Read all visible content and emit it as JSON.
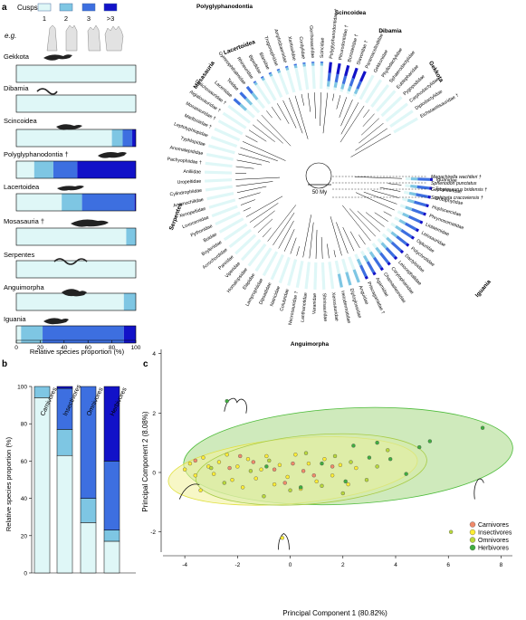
{
  "colors": {
    "cusp1": "#dff7f7",
    "cusp2": "#7ec6e3",
    "cusp3": "#3d6fe0",
    "cusp4": "#1212c8",
    "carnivores": "#f08a6a",
    "insectivores": "#ffee33",
    "omnivores": "#b9d93a",
    "herbivores": "#3fae3f",
    "ellipse_insect": "#f2f2a0",
    "ellipse_omni": "#d9eba6",
    "ellipse_herb": "#bfe3a6"
  },
  "panels": {
    "a": "a",
    "b": "b",
    "c": "c"
  },
  "panel_a": {
    "cusps_label": "Cusps",
    "cusp_categories": [
      "1",
      "2",
      "3",
      ">3"
    ],
    "eg_label": "e.g.",
    "xlabel": "Relative species proportion (%)",
    "xticks": [
      "0",
      "20",
      "40",
      "60",
      "80",
      "100"
    ]
  },
  "panel_b": {
    "ylabel": "Relative species proportion (%)",
    "yticks": [
      "0",
      "20",
      "40",
      "60",
      "80",
      "100"
    ]
  },
  "panel_c": {
    "xlabel": "Principal Component 1 (80.82%)",
    "ylabel": "Principal Component 2 (8.08%)",
    "xticks": [
      "-4",
      "-2",
      "0",
      "2",
      "4",
      "6",
      "8"
    ],
    "yticks": [
      "-2",
      "0",
      "2",
      "4"
    ],
    "legend": [
      "Carnivores",
      "Insectivores",
      "Omnivores",
      "Herbivores"
    ]
  },
  "tree": {
    "scale_label": "50 My",
    "clades": [
      "Polyglyphanodontia",
      "Scincoidea",
      "Dibamia",
      "Gekkota",
      "Iguania",
      "Anguimorpha",
      "Serpentes",
      "Mosasauria",
      "Lacertoidea"
    ],
    "tips": [
      "Iguanidae",
      "Tropiduridae",
      "Crotaphytidae",
      "Hoplocercidae",
      "Phrynosomatidae",
      "Liolaemidae",
      "Leiosauridae",
      "Opluridae",
      "Polychrotidae",
      "Dactyloidae",
      "Leiocephalidae",
      "Corytophanidae",
      "Chamaeleonidae",
      "Agamidae",
      "Priscagamidae †",
      "Anguidae",
      "Diploglossidae",
      "Helodermatidae",
      "Xenosauridae",
      "Shinisauridae",
      "Varanidae",
      "Lanthanotidae",
      "Necrosauridae †",
      "Colubridae",
      "Natricidae",
      "Dipsadidae",
      "Lamprophiidae",
      "Elapidae",
      "Homalopsidae",
      "Viperidae",
      "Pareidae",
      "Acrochordidae",
      "Boyleriidae",
      "Boidae",
      "Pythonidae",
      "Loxocemidae",
      "Xenopeltidae",
      "Anomochilidae",
      "Cylindrophiidae",
      "Uropeltidae",
      "Aniliidae",
      "Pachyophiidae †",
      "Anomalepididae",
      "Typhlopidae",
      "Leptotyphlopidae",
      "Madtsoiidae †",
      "Mosasauridae †",
      "Aigialosauridae †",
      "Dolichosauridae †",
      "Lacertidae",
      "Teiidae",
      "Gymnophthalmidae",
      "Rhineuridae",
      "Bipedidae",
      "Blanidae",
      "Trogonophidae",
      "Amphisbaenidae",
      "Xantusiidae",
      "Cordylidae",
      "Gerrhosauridae",
      "Scincidae",
      "Polyglyphanodontidae †",
      "Pleurodontidae †",
      "Borioteiidae †",
      "Slavoiidae †",
      "Paramacellodidae †",
      "Gekkonidae",
      "Phyllodactylidae",
      "Sphaerodactylidae",
      "Eublepharidae",
      "Pygopodidae",
      "Carphodactylidae",
      "Diplodactylidae",
      "Eichstaettisauridae †"
    ],
    "outgroups": [
      "Megachirella wachtleri †",
      "Sphenodon punctatus",
      "Gephyrosaurus bridensis †",
      "Sophineta cracoviensis †"
    ]
  },
  "chart_data": [
    {
      "type": "bar",
      "orientation": "horizontal",
      "stacked": true,
      "panel": "a",
      "series_names": [
        "1",
        "2",
        "3",
        ">3"
      ],
      "categories": [
        "Gekkota",
        "Dibamia",
        "Scincoidea",
        "Polyglyphanodontia †",
        "Lacertoidea",
        "Mosasauria †",
        "Serpentes",
        "Anguimorpha",
        "Iguania"
      ],
      "series": [
        {
          "name": "1",
          "values": [
            100,
            100,
            80,
            15,
            38,
            92,
            100,
            90,
            4
          ]
        },
        {
          "name": "2",
          "values": [
            0,
            0,
            9,
            16,
            17,
            8,
            0,
            10,
            18
          ]
        },
        {
          "name": "3",
          "values": [
            0,
            0,
            8,
            20,
            44,
            0,
            0,
            0,
            68
          ]
        },
        {
          "name": ">3",
          "values": [
            0,
            0,
            3,
            49,
            1,
            0,
            0,
            0,
            10
          ]
        }
      ],
      "xlabel": "Relative species proportion (%)",
      "xlim": [
        0,
        100
      ]
    },
    {
      "type": "bar",
      "stacked": true,
      "panel": "b",
      "categories": [
        "Carnivores",
        "Insectivores",
        "Omnivores",
        "Herbivores"
      ],
      "series": [
        {
          "name": "1",
          "values": [
            94,
            63,
            27,
            17
          ]
        },
        {
          "name": "2",
          "values": [
            6,
            14,
            13,
            6
          ]
        },
        {
          "name": "3",
          "values": [
            0,
            22,
            60,
            37
          ]
        },
        {
          "name": ">3",
          "values": [
            0,
            1,
            0,
            40
          ]
        }
      ],
      "ylabel": "Relative species proportion (%)",
      "ylim": [
        0,
        100
      ]
    },
    {
      "type": "scatter",
      "panel": "c",
      "xlabel": "Principal Component 1 (80.82%)",
      "ylabel": "Principal Component 2 (8.08%)",
      "xlim": [
        -5,
        8.5
      ],
      "ylim": [
        -2.8,
        4.2
      ],
      "series": [
        {
          "name": "Carnivores",
          "points": [
            [
              -3.6,
              0.4
            ],
            [
              -2.3,
              0.15
            ],
            [
              -1.4,
              0.35
            ],
            [
              -0.6,
              0.1
            ],
            [
              0.1,
              0.3
            ],
            [
              0.9,
              -0.1
            ],
            [
              1.6,
              0.2
            ],
            [
              -1.9,
              0.55
            ],
            [
              -0.2,
              -0.35
            ],
            [
              0.5,
              0.05
            ]
          ]
        },
        {
          "name": "Insectivores",
          "points": [
            [
              -4.0,
              0.1
            ],
            [
              -3.8,
              0.3
            ],
            [
              -3.6,
              -0.1
            ],
            [
              -3.3,
              0.5
            ],
            [
              -3.1,
              0.2
            ],
            [
              -2.9,
              -0.05
            ],
            [
              -2.7,
              0.35
            ],
            [
              -2.4,
              0.6
            ],
            [
              -2.2,
              -0.25
            ],
            [
              -2.0,
              0.2
            ],
            [
              -1.8,
              -0.5
            ],
            [
              -1.6,
              0.45
            ],
            [
              -1.3,
              -0.2
            ],
            [
              -1.1,
              0.1
            ],
            [
              -0.9,
              0.55
            ],
            [
              -0.6,
              -0.4
            ],
            [
              -0.4,
              0.25
            ],
            [
              -0.1,
              -0.15
            ],
            [
              0.2,
              0.6
            ],
            [
              0.4,
              -0.55
            ],
            [
              0.7,
              0.3
            ],
            [
              1.0,
              -0.3
            ],
            [
              1.3,
              0.45
            ],
            [
              1.6,
              -0.1
            ],
            [
              1.9,
              0.25
            ],
            [
              2.2,
              -0.4
            ],
            [
              2.5,
              0.15
            ],
            [
              -0.3,
              -2.2
            ],
            [
              -3.4,
              -0.6
            ]
          ]
        },
        {
          "name": "Omnivores",
          "points": [
            [
              -3.0,
              0.15
            ],
            [
              -2.5,
              -0.35
            ],
            [
              -1.5,
              0.05
            ],
            [
              -0.8,
              0.4
            ],
            [
              0.0,
              -0.6
            ],
            [
              0.6,
              0.65
            ],
            [
              1.2,
              -0.45
            ],
            [
              1.7,
              0.55
            ],
            [
              2.3,
              0.35
            ],
            [
              2.9,
              -0.25
            ],
            [
              3.3,
              0.2
            ],
            [
              3.7,
              0.75
            ],
            [
              -1.0,
              -0.8
            ],
            [
              2.0,
              -0.7
            ],
            [
              6.1,
              -2.0
            ]
          ]
        },
        {
          "name": "Herbivores",
          "points": [
            [
              -2.4,
              2.4
            ],
            [
              -0.9,
              0.2
            ],
            [
              0.4,
              -0.5
            ],
            [
              1.2,
              0.3
            ],
            [
              2.1,
              -0.3
            ],
            [
              2.4,
              0.9
            ],
            [
              3.0,
              0.5
            ],
            [
              3.3,
              1.0
            ],
            [
              3.8,
              0.45
            ],
            [
              4.4,
              -0.05
            ],
            [
              4.9,
              0.85
            ],
            [
              5.3,
              1.05
            ],
            [
              7.3,
              1.5
            ]
          ]
        }
      ]
    }
  ]
}
